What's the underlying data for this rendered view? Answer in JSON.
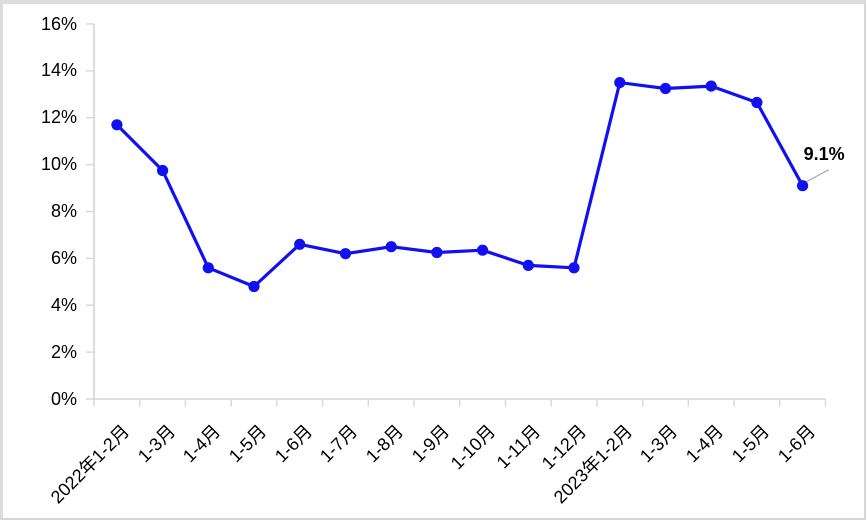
{
  "chart_data": {
    "type": "line",
    "title": "",
    "categories": [
      "2022年1-2月",
      "1-3月",
      "1-4月",
      "1-5月",
      "1-6月",
      "1-7月",
      "1-8月",
      "1-9月",
      "1-10月",
      "1-11月",
      "1-12月",
      "2023年1-2月",
      "1-3月",
      "1-4月",
      "1-5月",
      "1-6月"
    ],
    "values": [
      11.7,
      9.75,
      5.6,
      4.8,
      6.6,
      6.2,
      6.5,
      6.25,
      6.35,
      5.7,
      5.6,
      13.5,
      13.25,
      13.35,
      12.65,
      9.1
    ],
    "xlabel": "",
    "ylabel": "",
    "ylim": [
      0,
      16
    ],
    "ytick_step": 2,
    "ytick_labels": [
      "0%",
      "2%",
      "4%",
      "6%",
      "8%",
      "10%",
      "12%",
      "14%",
      "16%"
    ],
    "grid": "off",
    "legend": "none",
    "marker": "circle",
    "annotation": {
      "text": "9.1%",
      "category": "1-6月",
      "value": 9.1,
      "index": 15
    },
    "colors": {
      "line": "#1010f0",
      "marker": "#1010f0",
      "axis": "#d9d9d9",
      "tick": "#d9d9d9",
      "leader_line": "#a6a6a6",
      "text": "#000000",
      "background": "#ffffff"
    }
  }
}
